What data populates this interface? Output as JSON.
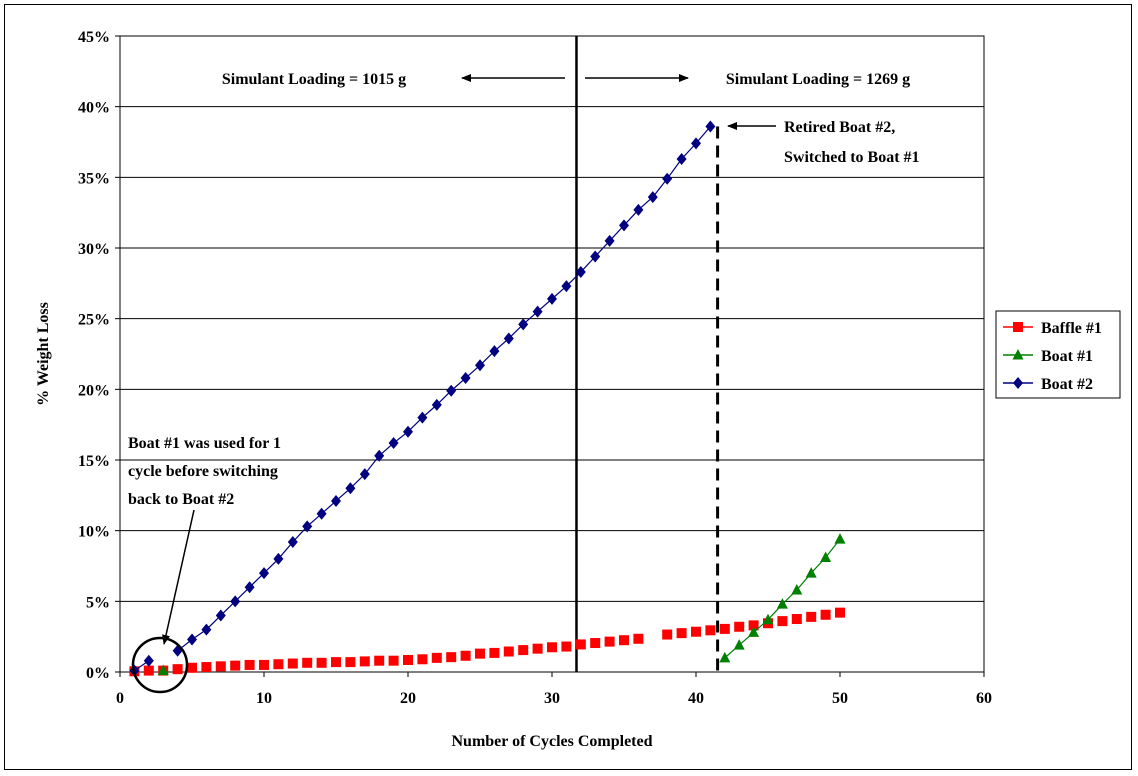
{
  "chart_data": {
    "type": "line",
    "title": "",
    "xlabel": "Number of Cycles Completed",
    "ylabel": "% Weight Loss",
    "xlim": [
      0,
      60
    ],
    "ylim": [
      0,
      45
    ],
    "x_ticks": [
      0,
      10,
      20,
      30,
      40,
      50,
      60
    ],
    "y_ticks": [
      0,
      5,
      10,
      15,
      20,
      25,
      30,
      35,
      40,
      45
    ],
    "y_tick_labels": [
      "0%",
      "5%",
      "10%",
      "15%",
      "20%",
      "25%",
      "30%",
      "35%",
      "40%",
      "45%"
    ],
    "grid": "horizontal",
    "legend_position": "right",
    "series": [
      {
        "name": "Baffle #1",
        "color": "#ff0000",
        "marker": "square",
        "x": [
          1,
          2,
          3,
          4,
          5,
          6,
          7,
          8,
          9,
          10,
          11,
          12,
          13,
          14,
          15,
          16,
          17,
          18,
          19,
          20,
          21,
          22,
          23,
          24,
          25,
          26,
          27,
          28,
          29,
          30,
          31,
          32,
          33,
          34,
          35,
          36,
          38,
          39,
          40,
          41,
          42,
          43,
          44,
          45,
          46,
          47,
          48,
          49,
          50
        ],
        "y": [
          0.05,
          0.1,
          0.1,
          0.2,
          0.3,
          0.35,
          0.4,
          0.45,
          0.5,
          0.5,
          0.55,
          0.6,
          0.65,
          0.65,
          0.7,
          0.7,
          0.75,
          0.8,
          0.8,
          0.85,
          0.9,
          1.0,
          1.05,
          1.15,
          1.3,
          1.35,
          1.45,
          1.55,
          1.65,
          1.75,
          1.8,
          1.95,
          2.05,
          2.15,
          2.25,
          2.35,
          2.65,
          2.75,
          2.85,
          2.95,
          3.05,
          3.2,
          3.3,
          3.45,
          3.6,
          3.75,
          3.9,
          4.05,
          4.2
        ]
      },
      {
        "name": "Boat #1",
        "color": "#008000",
        "marker": "triangle",
        "segments": [
          {
            "x": [
              3
            ],
            "y": [
              0.1
            ]
          },
          {
            "x": [
              42,
              43,
              44,
              45,
              46,
              47,
              48,
              49,
              50
            ],
            "y": [
              1.0,
              1.9,
              2.8,
              3.7,
              4.8,
              5.8,
              7.0,
              8.1,
              9.4
            ]
          }
        ]
      },
      {
        "name": "Boat #2",
        "color": "#000080",
        "marker": "diamond",
        "segments": [
          {
            "x": [
              1,
              2
            ],
            "y": [
              0.1,
              0.8
            ]
          },
          {
            "x": [
              4,
              5,
              6,
              7,
              8,
              9,
              10,
              11,
              12,
              13,
              14,
              15,
              16,
              17,
              18,
              19,
              20,
              21,
              22,
              23,
              24,
              25,
              26,
              27,
              28,
              29,
              30,
              31,
              32,
              33,
              34,
              35,
              36,
              37,
              38,
              39,
              40,
              41
            ],
            "y": [
              1.5,
              2.3,
              3.0,
              4.0,
              5.0,
              6.0,
              7.0,
              8.0,
              9.2,
              10.3,
              11.2,
              12.1,
              13.0,
              14.0,
              15.3,
              16.2,
              17.0,
              18.0,
              18.9,
              19.9,
              20.8,
              21.7,
              22.7,
              23.6,
              24.6,
              25.5,
              26.4,
              27.3,
              28.3,
              29.4,
              30.5,
              31.6,
              32.7,
              33.6,
              34.9,
              36.3,
              37.4,
              38.6
            ]
          }
        ]
      }
    ],
    "reference_lines": [
      {
        "x": 31.7,
        "style": "solid",
        "name": "loading-change-line"
      },
      {
        "x": 41.5,
        "style": "dashed",
        "name": "boat-retired-line"
      }
    ],
    "annotations": {
      "loading_left": "Simulant Loading = 1015 g",
      "loading_right": "Simulant Loading = 1269 g",
      "retired_line1": "Retired Boat #2,",
      "retired_line2": "Switched to Boat #1",
      "boat1_note_line1": "Boat #1 was used for 1",
      "boat1_note_line2": "cycle before switching",
      "boat1_note_line3": "back to Boat #2"
    }
  }
}
